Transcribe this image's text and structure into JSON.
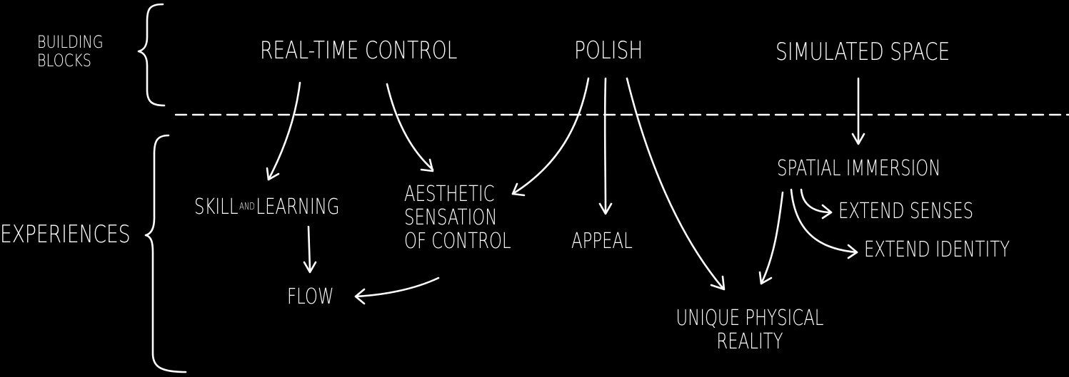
{
  "categories": {
    "building_blocks": [
      "BUILDING",
      "BLOCKS"
    ],
    "experiences": "EXPERIENCES"
  },
  "building_blocks": {
    "real_time_control": "REAL-TIME CONTROL",
    "polish": "POLISH",
    "simulated_space": "SIMULATED SPACE"
  },
  "experiences": {
    "skill": "SKILL",
    "and": "AND",
    "learning": "LEARNING",
    "aesthetic": [
      "AESTHETIC",
      "SENSATION",
      "OF CONTROL"
    ],
    "appeal": "APPEAL",
    "flow": "FLOW",
    "spatial_immersion": "SPATIAL IMMERSION",
    "extend_senses": "EXTEND SENSES",
    "extend_identity": "EXTEND IDENTITY",
    "unique_physical_reality": [
      "UNIQUE PHYSICAL",
      "REALITY"
    ]
  },
  "colors": {
    "background": "#000000",
    "ink": "#ffffff"
  }
}
